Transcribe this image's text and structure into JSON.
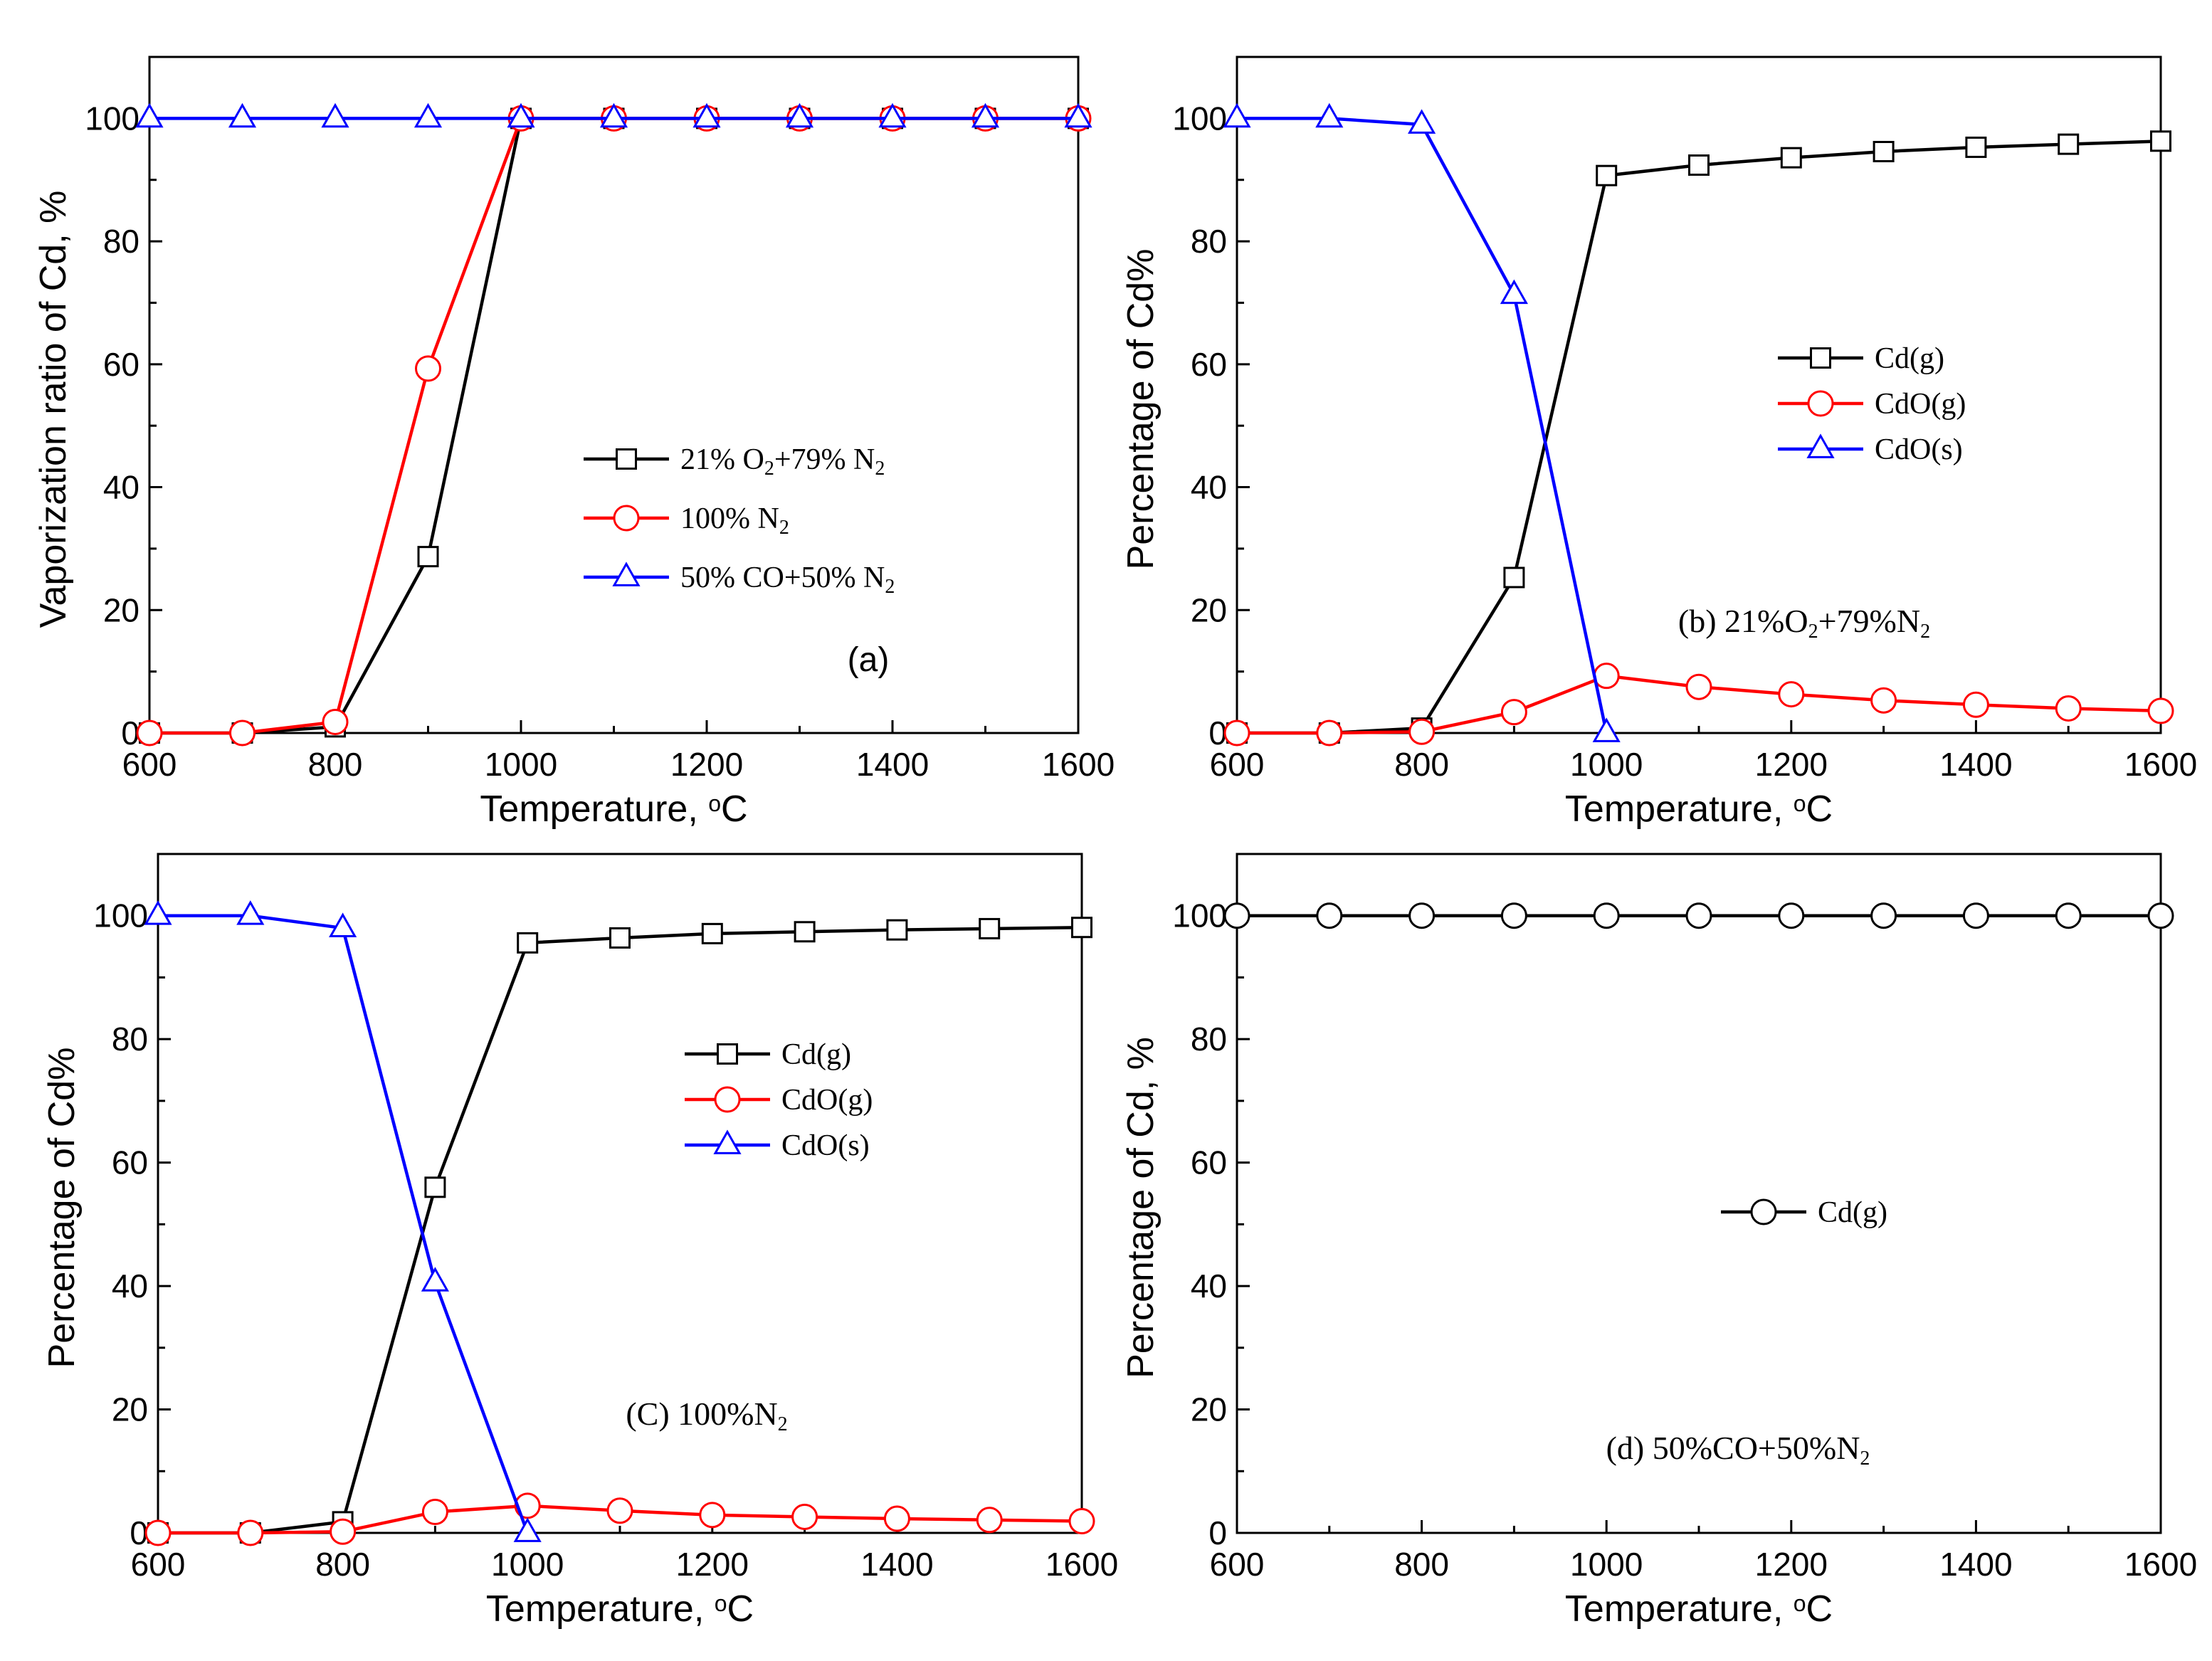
{
  "chart_data": [
    {
      "id": "a",
      "type": "line",
      "xlabel": "Temperature, °C",
      "ylabel": "Vaporization ratio of Cd, %",
      "xlim": [
        600,
        1600
      ],
      "ylim": [
        0,
        110
      ],
      "xticks": [
        600,
        800,
        1000,
        1200,
        1400,
        1600
      ],
      "yticks": [
        0,
        20,
        40,
        60,
        80,
        100
      ],
      "annotation": {
        "text": "(a)",
        "font": "sans"
      },
      "legend_location": "center-right",
      "x": [
        600,
        700,
        800,
        900,
        1000,
        1100,
        1200,
        1300,
        1400,
        1500,
        1600
      ],
      "series": [
        {
          "name": "21% O2+79% N2",
          "parts": [
            [
              "21% O",
              ""
            ],
            [
              "2",
              "sub"
            ],
            [
              "+79% N",
              ""
            ],
            [
              "2",
              "sub"
            ]
          ],
          "color": "#000000",
          "marker": "square",
          "values": [
            0,
            0,
            1,
            28.7,
            100,
            100,
            100,
            100,
            100,
            100,
            100
          ]
        },
        {
          "name": "100% N2",
          "parts": [
            [
              "100% N",
              ""
            ],
            [
              "2",
              "sub"
            ]
          ],
          "color": "#ff0000",
          "marker": "circle",
          "values": [
            0,
            0,
            1.8,
            59.3,
            100,
            100,
            100,
            100,
            100,
            100,
            100
          ]
        },
        {
          "name": "50% CO+50% N2",
          "parts": [
            [
              "50% CO+50% N",
              ""
            ],
            [
              "2",
              "sub"
            ]
          ],
          "color": "#0000ff",
          "marker": "triangle",
          "values": [
            100,
            100,
            100,
            100,
            100,
            100,
            100,
            100,
            100,
            100,
            100
          ]
        }
      ]
    },
    {
      "id": "b",
      "type": "line",
      "xlabel": "Temperature, °C",
      "ylabel": "Percentage of Cd%",
      "xlim": [
        600,
        1600
      ],
      "ylim": [
        0,
        110
      ],
      "xticks": [
        600,
        800,
        1000,
        1200,
        1400,
        1600
      ],
      "yticks": [
        0,
        20,
        40,
        60,
        80,
        100
      ],
      "annotation": {
        "text": "(b) 21%O2+79%N2",
        "parts": [
          [
            "(b) 21%O",
            ""
          ],
          [
            "2",
            "sub"
          ],
          [
            "+79%N",
            ""
          ],
          [
            "2",
            "sub"
          ]
        ],
        "font": "serif"
      },
      "legend_location": "center-right",
      "x": [
        600,
        700,
        800,
        900,
        1000,
        1100,
        1200,
        1300,
        1400,
        1500,
        1600
      ],
      "series": [
        {
          "name": "Cd(g)",
          "color": "#000000",
          "marker": "square",
          "values": [
            0,
            0,
            0.8,
            25.3,
            90.7,
            92.4,
            93.6,
            94.6,
            95.3,
            95.8,
            96.3
          ]
        },
        {
          "name": "CdO(g)",
          "color": "#ff0000",
          "marker": "circle",
          "values": [
            0,
            0,
            0.2,
            3.4,
            9.3,
            7.5,
            6.3,
            5.3,
            4.6,
            4.0,
            3.6
          ]
        },
        {
          "name": "CdO(s)",
          "color": "#0000ff",
          "marker": "triangle",
          "values": [
            100,
            100,
            99,
            71.3,
            0,
            null,
            null,
            null,
            null,
            null,
            null
          ]
        }
      ]
    },
    {
      "id": "c",
      "type": "line",
      "xlabel": "Temperature, °C",
      "ylabel": "Percentage of Cd%",
      "xlim": [
        600,
        1600
      ],
      "ylim": [
        0,
        110
      ],
      "xticks": [
        600,
        800,
        1000,
        1200,
        1400,
        1600
      ],
      "yticks": [
        0,
        20,
        40,
        60,
        80,
        100
      ],
      "annotation": {
        "text": "(C) 100%N2",
        "parts": [
          [
            "(C) 100%N",
            ""
          ],
          [
            "2",
            "sub"
          ]
        ],
        "font": "serif"
      },
      "legend_location": "center-right",
      "x": [
        600,
        700,
        800,
        900,
        1000,
        1100,
        1200,
        1300,
        1400,
        1500,
        1600
      ],
      "series": [
        {
          "name": "Cd(g)",
          "color": "#000000",
          "marker": "square",
          "values": [
            0,
            0,
            1.8,
            56,
            95.6,
            96.4,
            97.1,
            97.4,
            97.7,
            97.9,
            98.1
          ]
        },
        {
          "name": "CdO(g)",
          "color": "#ff0000",
          "marker": "circle",
          "values": [
            0,
            0,
            0.2,
            3.4,
            4.4,
            3.6,
            2.9,
            2.6,
            2.3,
            2.1,
            1.9
          ]
        },
        {
          "name": "CdO(s)",
          "color": "#0000ff",
          "marker": "triangle",
          "values": [
            100,
            100,
            98,
            40.6,
            0,
            null,
            null,
            null,
            null,
            null,
            null
          ]
        }
      ]
    },
    {
      "id": "d",
      "type": "line",
      "xlabel": "Temperature, °C",
      "ylabel": "Percentage of Cd, %",
      "xlim": [
        600,
        1600
      ],
      "ylim": [
        0,
        110
      ],
      "xticks": [
        600,
        800,
        1000,
        1200,
        1400,
        1600
      ],
      "yticks": [
        0,
        20,
        40,
        60,
        80,
        100
      ],
      "annotation": {
        "text": "(d) 50%CO+50%N2",
        "parts": [
          [
            "(d) 50%CO+50%N",
            ""
          ],
          [
            "2",
            "sub"
          ]
        ],
        "font": "serif"
      },
      "legend_location": "center-right",
      "x": [
        600,
        700,
        800,
        900,
        1000,
        1100,
        1200,
        1300,
        1400,
        1500,
        1600
      ],
      "series": [
        {
          "name": "Cd(g)",
          "color": "#000000",
          "marker": "circle",
          "values": [
            100,
            100,
            100,
            100,
            100,
            100,
            100,
            100,
            100,
            100,
            100
          ]
        }
      ]
    }
  ]
}
